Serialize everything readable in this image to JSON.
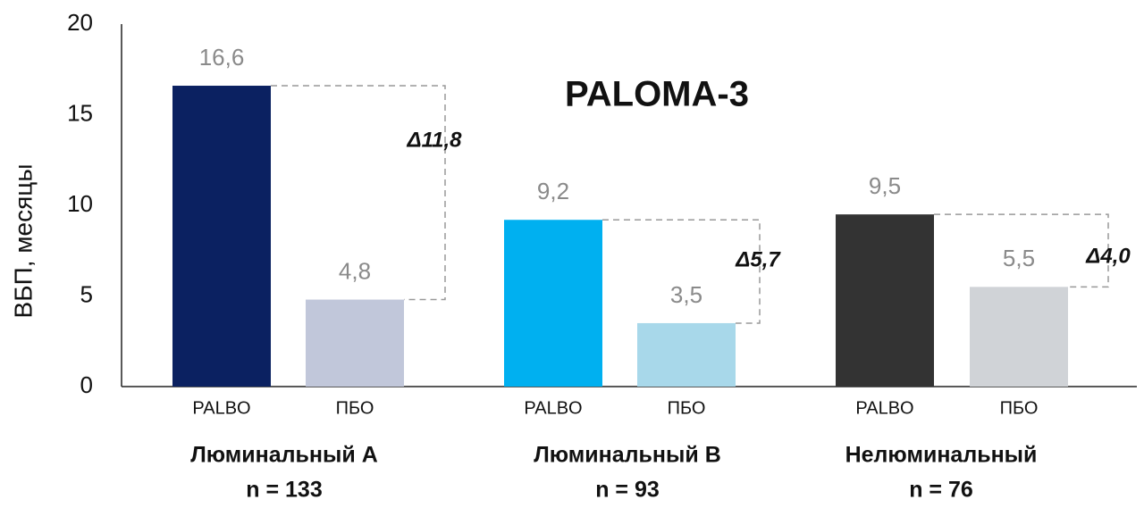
{
  "chart_data": {
    "type": "bar",
    "title": "PALOMA-3",
    "y_label": "ВБП, месяцы",
    "categories": [
      "PALBO",
      "ПБО",
      "PALBO",
      "ПБО",
      "PALBO",
      "ПБО"
    ],
    "values": [
      16.6,
      4.8,
      9.2,
      3.5,
      9.5,
      5.5
    ],
    "value_labels": [
      "16,6",
      "4,8",
      "9,2",
      "3,5",
      "9,5",
      "5,5"
    ],
    "colors": [
      "#0b2161",
      "#c1c7da",
      "#00b0f0",
      "#a8d8ea",
      "#333333",
      "#d0d3d7"
    ],
    "groups": [
      {
        "label": "Люминальный A",
        "n": "n = 133",
        "delta": "Δ11,8"
      },
      {
        "label": "Люминальный B",
        "n": "n = 93",
        "delta": "Δ5,7"
      },
      {
        "label": "Нелюминальный",
        "n": "n = 76",
        "delta": "Δ4,0"
      }
    ],
    "ylim": [
      0,
      20
    ],
    "yticks": [
      0,
      5,
      10,
      15,
      20
    ],
    "grid": false
  }
}
